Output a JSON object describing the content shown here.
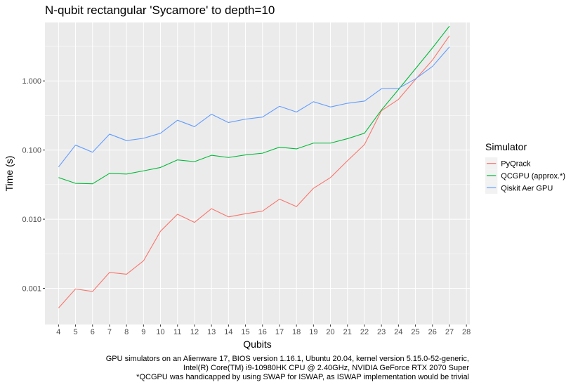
{
  "chart_data": {
    "type": "line",
    "title": "N-qubit rectangular 'Sycamore' to depth=10",
    "xlabel": "Qubits",
    "ylabel": "Time (s)",
    "y_scale": "log10",
    "ylim": [
      0.0003,
      7
    ],
    "xlim": [
      3.2,
      28.2
    ],
    "x_ticks": [
      4,
      5,
      6,
      7,
      8,
      9,
      10,
      11,
      12,
      13,
      14,
      15,
      16,
      17,
      18,
      19,
      20,
      21,
      22,
      23,
      24,
      25,
      26,
      27,
      28
    ],
    "y_ticks": [
      0.001,
      0.01,
      0.1,
      1
    ],
    "y_tick_labels": [
      "0.001",
      "0.010",
      "0.100",
      "1.000"
    ],
    "grid": true,
    "legend": {
      "title": "Simulator",
      "position": "right"
    },
    "x": [
      4,
      5,
      6,
      7,
      8,
      9,
      10,
      11,
      12,
      13,
      14,
      15,
      16,
      17,
      18,
      19,
      20,
      21,
      22,
      23,
      24,
      25,
      26,
      27
    ],
    "series": [
      {
        "name": "PyQrack",
        "color": "#F8766D",
        "values": [
          0.00052,
          0.00098,
          0.0009,
          0.0017,
          0.0016,
          0.0025,
          0.0067,
          0.0118,
          0.009,
          0.0142,
          0.0108,
          0.012,
          0.0131,
          0.0195,
          0.0152,
          0.028,
          0.04,
          0.07,
          0.12,
          0.37,
          0.54,
          1.05,
          2.0,
          4.5
        ]
      },
      {
        "name": "QCGPU (approx.*)",
        "color": "#00BA38",
        "values": [
          0.04,
          0.033,
          0.0325,
          0.046,
          0.045,
          0.05,
          0.056,
          0.072,
          0.068,
          0.084,
          0.078,
          0.085,
          0.09,
          0.11,
          0.104,
          0.126,
          0.126,
          0.146,
          0.175,
          0.38,
          0.75,
          1.5,
          3.0,
          6.2
        ]
      },
      {
        "name": "Qiskit Aer GPU",
        "color": "#619CFF",
        "values": [
          0.057,
          0.118,
          0.093,
          0.17,
          0.137,
          0.148,
          0.175,
          0.27,
          0.218,
          0.33,
          0.25,
          0.28,
          0.3,
          0.43,
          0.355,
          0.5,
          0.42,
          0.475,
          0.51,
          0.77,
          0.78,
          1.07,
          1.62,
          3.1
        ]
      }
    ],
    "caption": [
      "GPU simulators on an Alienware 17, BIOS version 1.16.1, Ubuntu 20.04, kernel version 5.15.0-52-generic,",
      "Intel(R) Core(TM) i9-10980HK CPU @ 2.40GHz, NVIDIA GeForce RTX 2070 Super",
      "*QCGPU was handicapped by using SWAP for ISWAP, as ISWAP implementation would be trivial"
    ]
  },
  "colors": {
    "panel_background": "#EBEBEB",
    "grid_major": "#FFFFFF"
  }
}
